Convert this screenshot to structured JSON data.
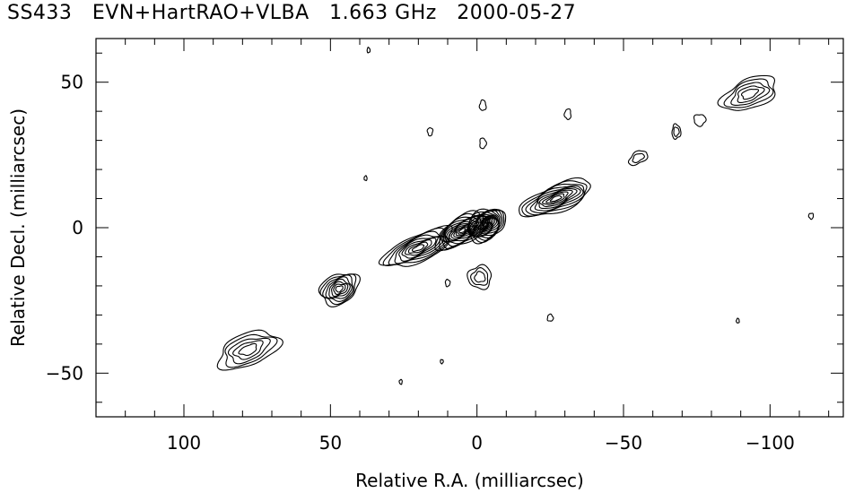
{
  "chart_data": {
    "type": "contour",
    "title": "SS433   EVN+HartRAO+VLBA   1.663 GHz   2000-05-27",
    "xlabel": "Relative R.A. (milliarcsec)",
    "ylabel": "Relative Decl. (milliarcsec)",
    "xlim": [
      130,
      -125
    ],
    "ylim": [
      -65,
      65
    ],
    "x_ticks": [
      100,
      50,
      0,
      -50,
      -100
    ],
    "x_tick_labels": [
      "100",
      "50",
      "0",
      "−50",
      "−100"
    ],
    "y_ticks": [
      50,
      0,
      -50
    ],
    "y_tick_labels": [
      "50",
      "0",
      "−50"
    ],
    "grid": false,
    "components": [
      {
        "name": "sw-knot-far",
        "x": 78,
        "y": -42,
        "rx": 11,
        "ry": 5.5,
        "angle": 22,
        "levels": 5
      },
      {
        "name": "sw-knot-mid",
        "x": 47,
        "y": -21,
        "rx": 7,
        "ry": 5,
        "angle": 28,
        "levels": 8
      },
      {
        "name": "sw-jet",
        "x": 20,
        "y": -7,
        "rx": 13,
        "ry": 4.5,
        "angle": 24,
        "levels": 9
      },
      {
        "name": "core-east",
        "x": 5,
        "y": -1,
        "rx": 10,
        "ry": 4.5,
        "angle": 30,
        "levels": 13
      },
      {
        "name": "core",
        "x": -3,
        "y": 1,
        "rx": 7,
        "ry": 5,
        "angle": 32,
        "levels": 16
      },
      {
        "name": "south-blob",
        "x": -1,
        "y": -17,
        "rx": 4,
        "ry": 4,
        "angle": 45,
        "levels": 3
      },
      {
        "name": "ne-jet",
        "x": -27,
        "y": 10,
        "rx": 13,
        "ry": 4.5,
        "angle": 22,
        "levels": 10
      },
      {
        "name": "ne-knot-1",
        "x": -55,
        "y": 24,
        "rx": 3.5,
        "ry": 2,
        "angle": 30,
        "levels": 2
      },
      {
        "name": "ne-knot-2",
        "x": -68,
        "y": 33,
        "rx": 1.5,
        "ry": 2.5,
        "angle": 0,
        "levels": 2
      },
      {
        "name": "ne-knot-3",
        "x": -76,
        "y": 37,
        "rx": 2,
        "ry": 2,
        "angle": 0,
        "levels": 1
      },
      {
        "name": "ne-knot-far",
        "x": -93,
        "y": 46,
        "rx": 10,
        "ry": 5,
        "angle": 22,
        "levels": 5
      },
      {
        "name": "noise-1",
        "x": -2,
        "y": 42,
        "rx": 1.1,
        "ry": 1.8,
        "angle": 0,
        "levels": 1
      },
      {
        "name": "noise-2",
        "x": -2,
        "y": 29,
        "rx": 1.1,
        "ry": 1.8,
        "angle": 0,
        "levels": 1
      },
      {
        "name": "noise-3",
        "x": 16,
        "y": 33,
        "rx": 0.9,
        "ry": 1.4,
        "angle": 0,
        "levels": 1
      },
      {
        "name": "noise-4",
        "x": -31,
        "y": 39,
        "rx": 1.1,
        "ry": 1.8,
        "angle": 0,
        "levels": 1
      },
      {
        "name": "noise-5",
        "x": -25,
        "y": -31,
        "rx": 1,
        "ry": 1.2,
        "angle": 0,
        "levels": 1
      },
      {
        "name": "noise-6",
        "x": 10,
        "y": -19,
        "rx": 0.8,
        "ry": 1.2,
        "angle": 0,
        "levels": 1
      },
      {
        "name": "noise-7",
        "x": -114,
        "y": 4,
        "rx": 0.8,
        "ry": 1.0,
        "angle": 0,
        "levels": 1
      },
      {
        "name": "noise-8",
        "x": 38,
        "y": 17,
        "rx": 0.5,
        "ry": 0.8,
        "angle": 0,
        "levels": 1
      },
      {
        "name": "noise-9",
        "x": 37,
        "y": 61,
        "rx": 0.5,
        "ry": 0.9,
        "angle": 0,
        "levels": 1
      },
      {
        "name": "noise-10",
        "x": 12,
        "y": -46,
        "rx": 0.5,
        "ry": 0.7,
        "angle": 0,
        "levels": 1
      },
      {
        "name": "noise-11",
        "x": 26,
        "y": -53,
        "rx": 0.5,
        "ry": 0.8,
        "angle": 0,
        "levels": 1
      },
      {
        "name": "noise-12",
        "x": -89,
        "y": -32,
        "rx": 0.5,
        "ry": 0.8,
        "angle": 0,
        "levels": 1
      }
    ]
  }
}
